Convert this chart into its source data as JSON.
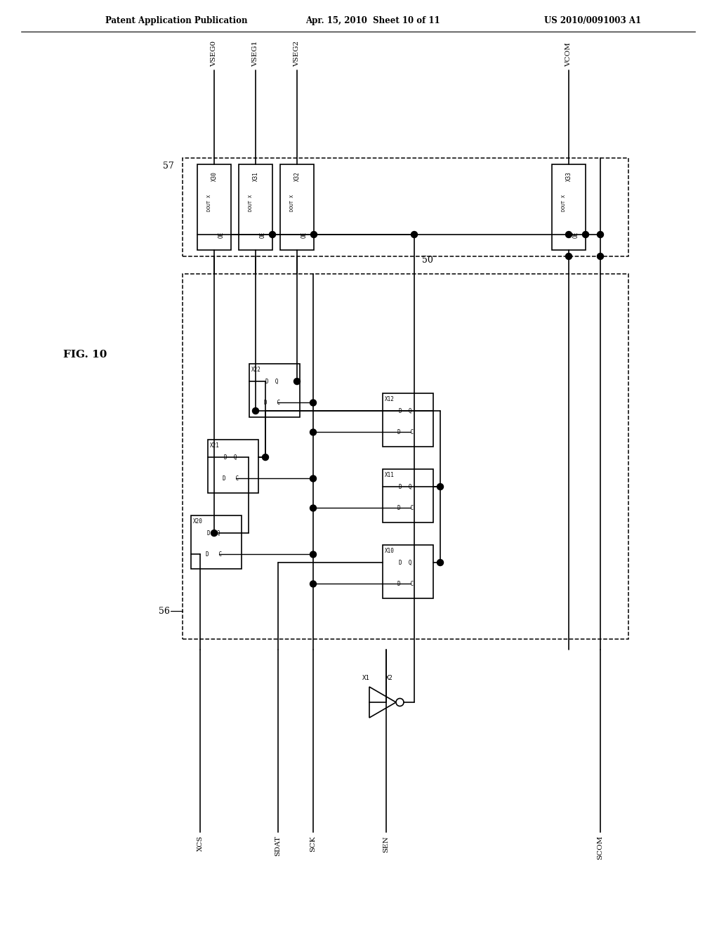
{
  "bg_color": "#ffffff",
  "header_left": "Patent Application Publication",
  "header_mid": "Apr. 15, 2010  Sheet 10 of 11",
  "header_right": "US 2010/0091003 A1",
  "fig_label": "FIG. 10",
  "block57_label": "57",
  "block50_label": "50",
  "block56_label": "56",
  "vseg_labels": [
    "VSEG0",
    "VSEG1",
    "VSEG2"
  ],
  "vcom_label": "VCOM",
  "bottom_signals": [
    "XCS",
    "SDAT",
    "SCK",
    "SEN",
    "SCOM"
  ],
  "drv_names": [
    "X30",
    "X31",
    "X32",
    "X33"
  ],
  "dff_names_left": [
    "X20",
    "X21",
    "X22"
  ],
  "dff_names_right": [
    "X10",
    "X11",
    "X12"
  ],
  "gate_labels": [
    "X1",
    "X2"
  ]
}
